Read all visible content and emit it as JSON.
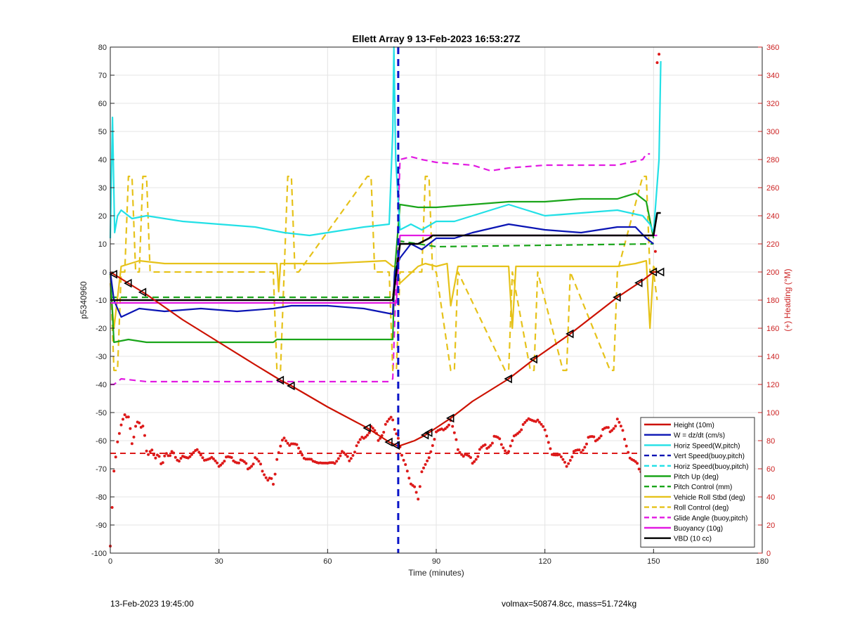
{
  "chart_data": {
    "type": "line",
    "title": "Ellett Array 9 13-Feb-2023 16:53:27Z",
    "xlabel": "Time (minutes)",
    "ylabel": "p5340960",
    "ylabel_right": "(+) Heading (°M)",
    "xlim": [
      0,
      180
    ],
    "ylim": [
      -100,
      80
    ],
    "ylim_right": [
      0,
      360
    ],
    "x_ticks": [
      "0",
      "30",
      "60",
      "90",
      "120",
      "150",
      "180"
    ],
    "y_ticks": [
      "80",
      "70",
      "60",
      "50",
      "40",
      "30",
      "20",
      "10",
      "0",
      "-10",
      "-20",
      "-30",
      "-40",
      "-50",
      "-60",
      "-70",
      "-80",
      "-90",
      "-100"
    ],
    "y_right_ticks": [
      "360",
      "340",
      "320",
      "300",
      "280",
      "260",
      "240",
      "220",
      "200",
      "180",
      "160",
      "140",
      "120",
      "100",
      "80",
      "60",
      "40",
      "20",
      "0"
    ],
    "grid": true,
    "legend_position": "bottom-right",
    "apogee_line_x": 79.5,
    "heading_target": 71,
    "series": [
      {
        "name": "Height (10m)",
        "color": "#cc1100",
        "style": "solid",
        "x": [
          0,
          5,
          10,
          20,
          30,
          40,
          47,
          50,
          60,
          71,
          77,
          79.5,
          84,
          87,
          94,
          100,
          110,
          117,
          127,
          140,
          147,
          150,
          151.5
        ],
        "values": [
          0,
          -4,
          -8,
          -17,
          -25,
          -33,
          -38.5,
          -40.5,
          -48,
          -55.5,
          -60.5,
          -62,
          -60,
          -58,
          -52,
          -46,
          -38,
          -31,
          -22,
          -9,
          -3,
          0,
          0
        ]
      },
      {
        "name": "W = dz/dt (cm/s)",
        "color": "#0a14b4",
        "style": "solid",
        "x": [
          0,
          1,
          3,
          8,
          15,
          25,
          35,
          45,
          50,
          60,
          70,
          78,
          78.5,
          80,
          83,
          86,
          90,
          95,
          100,
          110,
          115,
          120,
          130,
          140,
          145,
          148,
          150
        ],
        "values": [
          0,
          -10,
          -16,
          -13,
          -14,
          -13,
          -14,
          -13,
          -12,
          -12,
          -13,
          -15,
          0,
          5,
          10,
          8,
          12,
          12,
          14,
          17,
          16,
          15,
          14,
          16,
          16,
          12,
          10
        ]
      },
      {
        "name": "Horiz Speed(W,pitch)",
        "color": "#22e0e6",
        "style": "solid",
        "x": [
          0,
          0.6,
          1.2,
          2,
          3,
          6,
          10,
          20,
          30,
          40,
          48,
          55,
          60,
          70,
          77,
          78,
          78.3,
          78.8,
          80,
          83,
          86,
          90,
          95,
          100,
          110,
          115,
          120,
          130,
          140,
          147,
          149,
          150,
          151.5,
          152
        ],
        "values": [
          12,
          55,
          14,
          20,
          22,
          19,
          20,
          18,
          17,
          16,
          14,
          13,
          14,
          16,
          17,
          50,
          80,
          40,
          15,
          17,
          15,
          18,
          18,
          20,
          24,
          22,
          20,
          21,
          22,
          20,
          17,
          14,
          40,
          75
        ]
      },
      {
        "name": "Vert Speed(buoy,pitch)",
        "color": "#0a14b4",
        "style": "dashed",
        "x": [
          0
        ],
        "values": [
          0
        ]
      },
      {
        "name": "Horiz Speed(buoy,pitch)",
        "color": "#22e0e6",
        "style": "dashed",
        "x": [
          0
        ],
        "values": [
          0
        ]
      },
      {
        "name": "Pitch Up (deg)",
        "color": "#1aa51a",
        "style": "solid",
        "x": [
          0,
          1,
          5,
          10,
          20,
          30,
          45,
          46,
          60,
          70,
          78,
          78.5,
          80,
          85,
          90,
          100,
          110,
          120,
          130,
          140,
          145,
          148,
          150
        ],
        "values": [
          0,
          -25,
          -24,
          -25,
          -25,
          -25,
          -25,
          -24,
          -24,
          -24,
          -24,
          0,
          24,
          23,
          23,
          24,
          25,
          25,
          26,
          26,
          28,
          25,
          12
        ]
      },
      {
        "name": "Pitch Control (mm)",
        "color": "#1aa51a",
        "style": "dashed",
        "x": [
          0,
          2,
          78,
          80,
          90,
          150
        ],
        "values": [
          -9,
          -9,
          -9,
          11,
          9,
          10
        ]
      },
      {
        "name": "Vehicle Roll Stbd (deg)",
        "color": "#e6c21a",
        "style": "solid",
        "x": [
          0,
          1,
          3,
          8,
          15,
          30,
          45,
          46,
          46.5,
          47,
          60,
          76,
          77,
          78,
          79,
          80,
          85,
          87,
          90,
          93,
          94,
          96,
          110,
          111,
          112,
          120,
          130,
          140,
          145,
          148,
          149,
          150,
          151
        ],
        "values": [
          -4,
          -20,
          2,
          4,
          3,
          3,
          3,
          3,
          -7,
          3,
          3,
          4,
          3,
          2,
          2,
          -4,
          2,
          3,
          2,
          3,
          -12,
          2,
          2,
          -20,
          2,
          2,
          2,
          2,
          3,
          4,
          -20,
          2,
          0
        ]
      },
      {
        "name": "Roll Control (deg)",
        "color": "#e6c21a",
        "style": "dashed",
        "x": [
          0,
          1,
          2,
          3,
          4,
          5,
          6,
          7,
          8,
          9,
          10,
          11,
          12,
          45,
          46,
          47,
          48,
          49,
          50,
          51,
          52,
          71,
          72,
          73,
          77,
          78,
          79,
          80,
          86,
          87,
          88,
          89,
          90,
          94,
          95,
          96,
          109,
          110,
          111,
          116,
          117,
          118,
          125,
          126,
          127,
          138,
          139,
          140,
          147,
          148,
          149,
          150,
          151
        ],
        "values": [
          0,
          -35,
          -35,
          0,
          0,
          34,
          34,
          0,
          0,
          34,
          34,
          0,
          0,
          0,
          -35,
          -35,
          0,
          34,
          34,
          0,
          0,
          34,
          34,
          0,
          0,
          -35,
          -35,
          0,
          0,
          34,
          34,
          0,
          0,
          -35,
          -35,
          0,
          -35,
          -35,
          0,
          -35,
          -35,
          0,
          -35,
          -35,
          0,
          -35,
          -35,
          0,
          34,
          34,
          0,
          0,
          -10
        ]
      },
      {
        "name": "Glide Angle (buoy,pitch)",
        "color": "#e21ae2",
        "style": "dashed",
        "x": [
          0,
          1,
          3,
          10,
          20,
          30,
          40,
          50,
          60,
          70,
          77,
          78,
          79,
          80,
          83,
          86,
          90,
          100,
          105,
          110,
          120,
          130,
          140,
          147,
          148,
          149
        ],
        "values": [
          -40,
          -40,
          -38,
          -39,
          -39,
          -39,
          -39,
          -39,
          -39,
          -39,
          -39,
          -38,
          0,
          40,
          41,
          40,
          39,
          38,
          36,
          37,
          38,
          38,
          38,
          40,
          42,
          42
        ]
      },
      {
        "name": "Buoyancy (10g)",
        "color": "#e21ae2",
        "style": "solid",
        "x": [
          0,
          79,
          80,
          151
        ],
        "values": [
          -11,
          -11,
          13,
          13
        ]
      },
      {
        "name": "VBD (10 cc)",
        "color": "#000000",
        "style": "solid",
        "x": [
          0,
          1,
          78,
          79,
          80,
          85,
          88,
          89,
          150,
          151,
          152
        ],
        "values": [
          -10,
          -10,
          -10,
          0,
          10,
          10,
          12,
          13,
          13,
          21,
          21
        ]
      }
    ],
    "heading": {
      "color": "#dd1a1a",
      "x": [
        0,
        1,
        2,
        3,
        4,
        5,
        6,
        7,
        8,
        9,
        10,
        11,
        12,
        13,
        14,
        15,
        16,
        17,
        18,
        19,
        20,
        22,
        24,
        26,
        28,
        30,
        32,
        34,
        36,
        38,
        40,
        42,
        44,
        45,
        46,
        48,
        50,
        52,
        54,
        56,
        58,
        60,
        62,
        64,
        66,
        68,
        70,
        72,
        74,
        76,
        78,
        79,
        80,
        81,
        82,
        83,
        84,
        85,
        86,
        88,
        90,
        92,
        94,
        96,
        98,
        100,
        102,
        104,
        106,
        108,
        110,
        112,
        114,
        116,
        118,
        120,
        122,
        124,
        126,
        128,
        130,
        132,
        134,
        136,
        138,
        140,
        142,
        144,
        146,
        148,
        150,
        151,
        152
      ],
      "values": [
        5,
        58,
        80,
        90,
        100,
        95,
        80,
        88,
        95,
        88,
        75,
        70,
        72,
        68,
        65,
        68,
        70,
        72,
        68,
        66,
        68,
        70,
        72,
        68,
        66,
        64,
        66,
        68,
        64,
        62,
        66,
        60,
        52,
        50,
        66,
        82,
        78,
        74,
        68,
        64,
        66,
        62,
        66,
        70,
        68,
        74,
        84,
        88,
        82,
        90,
        96,
        84,
        76,
        66,
        58,
        50,
        46,
        40,
        56,
        70,
        84,
        90,
        92,
        76,
        68,
        66,
        72,
        76,
        82,
        78,
        72,
        84,
        92,
        94,
        96,
        86,
        72,
        68,
        64,
        70,
        74,
        80,
        82,
        86,
        88,
        94,
        82,
        66,
        60,
        56,
        80,
        350,
        360
      ]
    },
    "annotations": [
      "13-Feb-2023 19:45:00",
      "volmax=50874.8cc, mass=51.724kg"
    ]
  }
}
